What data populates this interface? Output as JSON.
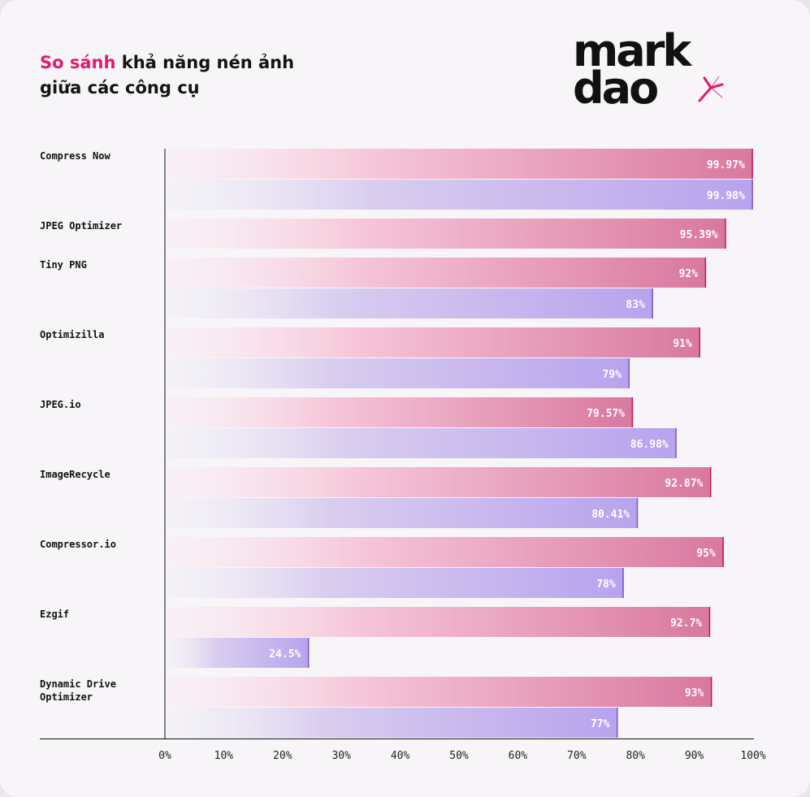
{
  "header": {
    "title_highlight": "So sánh",
    "title_rest": " khả năng nén ảnh",
    "title_line2": "giữa các công cụ"
  },
  "logo": {
    "line1": "mark",
    "line2": "dao",
    "accent_color": "#e21b6d"
  },
  "colors": {
    "series1": "#d9789f",
    "series2": "#b7a3ee",
    "highlight": "#e21b6d"
  },
  "chart_data": {
    "type": "bar",
    "orientation": "horizontal",
    "categories": [
      "Compress Now",
      "JPEG Optimizer",
      "Tiny PNG",
      "Optimizilla",
      "JPEG.io",
      "ImageRecycle",
      "Compressor.io",
      "Ezgif",
      "Dynamic Drive Optimizer"
    ],
    "series": [
      {
        "values": [
          99.97,
          95.39,
          92,
          91,
          79.57,
          92.87,
          95,
          92.7,
          93
        ],
        "labels": [
          "99.97%",
          "95.39%",
          "92%",
          "91%",
          "79.57%",
          "92.87%",
          "95%",
          "92.7%",
          "93%"
        ]
      },
      {
        "values": [
          99.98,
          null,
          83,
          79,
          86.98,
          80.41,
          78,
          24.5,
          77
        ],
        "labels": [
          "99.98%",
          null,
          "83%",
          "79%",
          "86.98%",
          "80.41%",
          "78%",
          "24.5%",
          "77%"
        ]
      }
    ],
    "xlim": [
      0,
      100
    ],
    "x_ticks": [
      "0%",
      "10%",
      "20%",
      "30%",
      "40%",
      "50%",
      "60%",
      "70%",
      "80%",
      "90%",
      "100%"
    ],
    "grid": false,
    "legend": "none"
  }
}
